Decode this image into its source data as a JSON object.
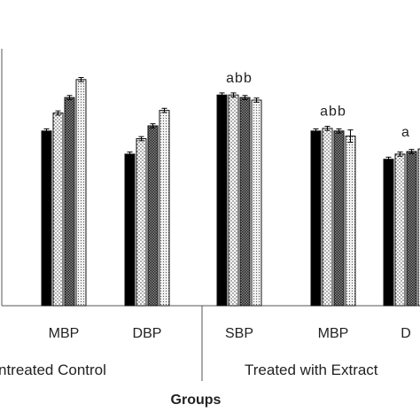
{
  "chart_data": {
    "type": "bar",
    "title": "",
    "xlabel": "Groups",
    "ylabel": "",
    "ylim": [
      0,
      100
    ],
    "categories": [
      "MBP",
      "DBP",
      "SBP",
      "MBP",
      "D"
    ],
    "group_labels": [
      "ntreated Control",
      "Treated with  Extract"
    ],
    "series": [
      {
        "fill": "solid-black",
        "values": [
          68,
          59,
          82,
          68,
          57
        ]
      },
      {
        "fill": "dotted-light",
        "values": [
          75,
          65,
          82,
          69,
          59
        ]
      },
      {
        "fill": "checkered-dark",
        "values": [
          81,
          70,
          81,
          68,
          60
        ]
      },
      {
        "fill": "dotted-dense",
        "values": [
          88,
          76,
          80,
          66,
          61
        ]
      }
    ],
    "errors": [
      [
        0.8,
        0.8,
        0.8,
        0.8,
        0.8
      ],
      [
        0.8,
        0.8,
        0.8,
        0.8,
        0.8
      ],
      [
        0.8,
        0.8,
        0.8,
        0.8,
        0.8
      ],
      [
        0.8,
        0.8,
        0.8,
        2.4,
        0.8
      ]
    ],
    "annotations": [
      {
        "category_index": 2,
        "text": "abb"
      },
      {
        "category_index": 3,
        "text": "abb"
      },
      {
        "category_index": 4,
        "text": "a"
      }
    ],
    "grid": false,
    "legend": "none"
  },
  "colors": {
    "bar_stroke": "#111111",
    "axis": "#555555",
    "text": "#222222"
  }
}
